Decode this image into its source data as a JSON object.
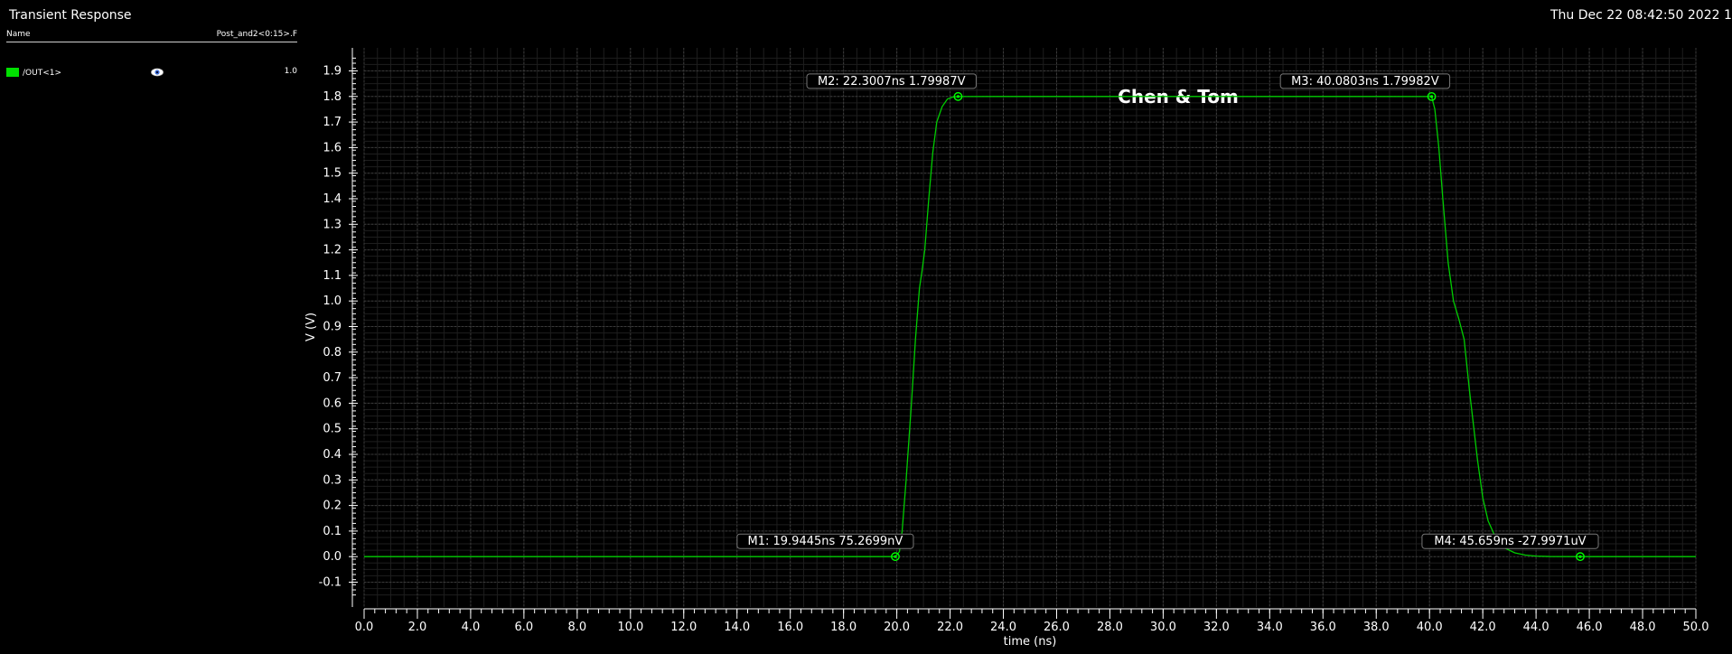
{
  "window": {
    "title": "Transient Response",
    "timestamp": "Thu Dec 22 08:42:50 2022  1"
  },
  "legend": {
    "name_header": "Name",
    "file_header": "Post_and2<0:15>.F",
    "signals": [
      {
        "name": "/OUT<1>",
        "color": "#00e000",
        "value": "1.0",
        "icon": "eye-icon"
      }
    ]
  },
  "colors": {
    "background": "#000000",
    "trace": "#00cc00",
    "marker": "#00ff00",
    "grid": "#3a3a3a",
    "text": "#ffffff"
  },
  "chart_data": {
    "type": "line",
    "title": "Chen & Tom",
    "xlabel": "time (ns)",
    "ylabel": "V (V)",
    "xlim": [
      0,
      50
    ],
    "ylim": [
      -0.15,
      1.95
    ],
    "grid": true,
    "x_ticks": [
      "0.0",
      "2.0",
      "4.0",
      "6.0",
      "8.0",
      "10.0",
      "12.0",
      "14.0",
      "16.0",
      "18.0",
      "20.0",
      "22.0",
      "24.0",
      "26.0",
      "28.0",
      "30.0",
      "32.0",
      "34.0",
      "36.0",
      "38.0",
      "40.0",
      "42.0",
      "44.0",
      "46.0",
      "48.0",
      "50.0"
    ],
    "y_ticks": [
      "-0.1",
      "0.0",
      "0.1",
      "0.2",
      "0.3",
      "0.4",
      "0.5",
      "0.6",
      "0.7",
      "0.8",
      "0.9",
      "1.0",
      "1.1",
      "1.2",
      "1.3",
      "1.4",
      "1.5",
      "1.6",
      "1.7",
      "1.8",
      "1.9"
    ],
    "series": [
      {
        "name": "/OUT<1>",
        "x": [
          0,
          19.9445,
          20.1,
          20.2,
          20.35,
          20.55,
          20.7,
          20.85,
          20.95,
          21.05,
          21.2,
          21.35,
          21.5,
          21.7,
          21.9,
          22.1,
          22.3007,
          24,
          30,
          36,
          40.0803,
          40.2,
          40.35,
          40.5,
          40.7,
          40.9,
          41.1,
          41.3,
          41.5,
          41.8,
          42.0,
          42.2,
          42.5,
          42.8,
          43.2,
          43.6,
          44.0,
          44.5,
          45.659,
          48,
          50
        ],
        "y": [
          0,
          7.53e-08,
          0.02,
          0.1,
          0.3,
          0.6,
          0.85,
          1.05,
          1.12,
          1.2,
          1.4,
          1.58,
          1.7,
          1.76,
          1.79,
          1.798,
          1.79987,
          1.8,
          1.8,
          1.8,
          1.79982,
          1.75,
          1.6,
          1.4,
          1.15,
          1.0,
          0.93,
          0.85,
          0.65,
          0.38,
          0.23,
          0.14,
          0.07,
          0.035,
          0.015,
          0.006,
          0.002,
          0.0005,
          -2.79971e-05,
          0,
          0
        ]
      }
    ],
    "markers": [
      {
        "label": "M1: 19.9445ns 75.2699nV",
        "x": 19.9445,
        "y": 7.52699e-08
      },
      {
        "label": "M2: 22.3007ns 1.79987V",
        "x": 22.3007,
        "y": 1.79987
      },
      {
        "label": "M3: 40.0803ns 1.79982V",
        "x": 40.0803,
        "y": 1.79982
      },
      {
        "label": "M4: 45.659ns -27.9971uV",
        "x": 45.659,
        "y": -2.79971e-05
      }
    ]
  }
}
